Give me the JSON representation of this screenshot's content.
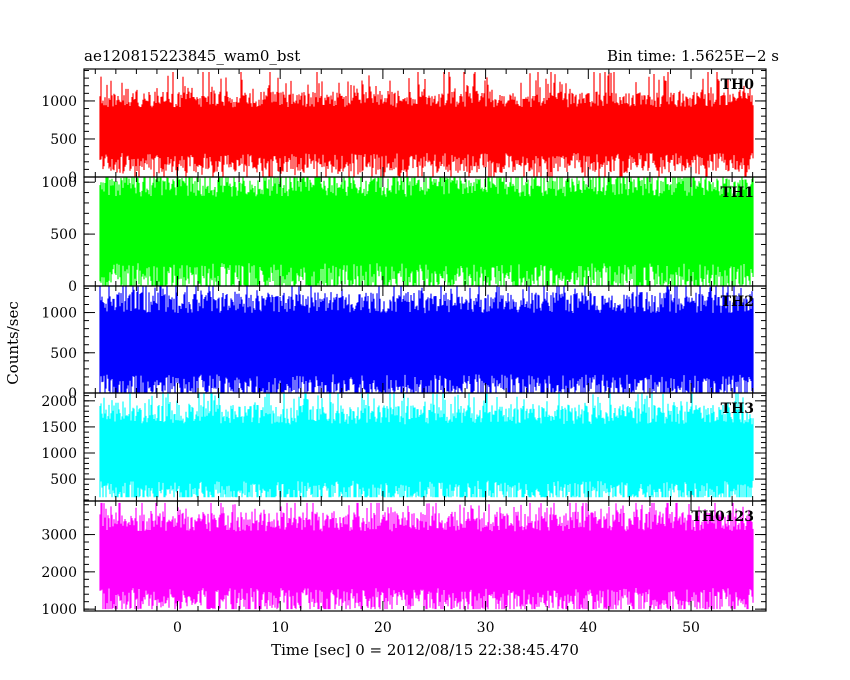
{
  "chart_data": {
    "type": "line",
    "title_left": "ae120815223845_wam0_bst",
    "title_right": "Bin time: 1.5625E−2 s",
    "xlabel": "Time [sec] 0 = 2012/08/15 22:38:45.470",
    "ylabel": "Counts/sec",
    "xlim": [
      -9.1,
      57.3
    ],
    "data_x_range": [
      -7.5,
      56.0
    ],
    "bin_time_s": 0.015625,
    "x_ticks": [
      0,
      10,
      20,
      30,
      40,
      50
    ],
    "x_tick_labels": [
      "0",
      "10",
      "20",
      "30",
      "40",
      "50"
    ],
    "panels": [
      {
        "name": "TH0",
        "color": "#ff0000",
        "ylim": [
          0,
          1420
        ],
        "y_ticks": [
          0,
          500,
          1000
        ],
        "y_tick_labels": [
          "0",
          "500",
          "1000"
        ],
        "typical_range": [
          250,
          1000
        ],
        "min": 0,
        "max": 1380
      },
      {
        "name": "TH1",
        "color": "#00ff00",
        "ylim": [
          0,
          1050
        ],
        "y_ticks": [
          0,
          500,
          1000
        ],
        "y_tick_labels": [
          "0",
          "500",
          "1000"
        ],
        "typical_range": [
          150,
          950
        ],
        "min": 0,
        "max": 1050
      },
      {
        "name": "TH2",
        "color": "#0000ff",
        "ylim": [
          0,
          1330
        ],
        "y_ticks": [
          0,
          500,
          1000
        ],
        "y_tick_labels": [
          "0",
          "500",
          "1000"
        ],
        "typical_range": [
          150,
          1100
        ],
        "min": 0,
        "max": 1330
      },
      {
        "name": "TH3",
        "color": "#00ffff",
        "ylim": [
          80,
          2150
        ],
        "y_ticks": [
          500,
          1000,
          1500,
          2000
        ],
        "y_tick_labels": [
          "500",
          "1000",
          "1500",
          "2000"
        ],
        "typical_range": [
          350,
          1700
        ],
        "min": 150,
        "max": 2150
      },
      {
        "name": "TH0123",
        "color": "#ff00ff",
        "ylim": [
          950,
          3900
        ],
        "y_ticks": [
          1000,
          2000,
          3000
        ],
        "y_tick_labels": [
          "1000",
          "2000",
          "3000"
        ],
        "typical_range": [
          1400,
          3300
        ],
        "min": 1000,
        "max": 3850
      }
    ]
  }
}
